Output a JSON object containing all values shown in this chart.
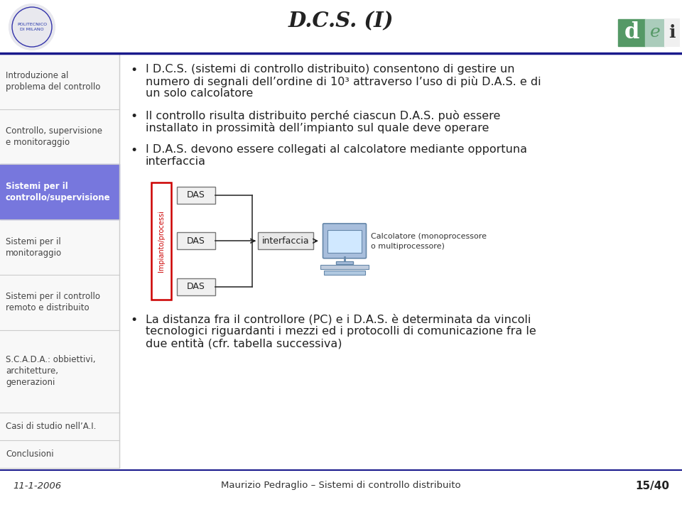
{
  "title": "D.C.S. (I)",
  "bg_color": "#ffffff",
  "header_line_color": "#1a1a8c",
  "sidebar_bg": "#f5f5f5",
  "sidebar_active_bg": "#7777dd",
  "sidebar_active_text": "#ffffff",
  "sidebar_text_color": "#444444",
  "sidebar_items": [
    "Introduzione al\nproblema del controllo",
    "Controllo, supervisione\ne monitoraggio",
    "Sistemi per il\ncontrollo/supervisione",
    "Sistemi per il\nmonitoraggio",
    "Sistemi per il controllo\nremoto e distribuito",
    "S.C.A.D.A.: obbiettivi,\narchitetture,\ngenerazioni",
    "Casi di studio nell’A.I.",
    "Conclusioni"
  ],
  "sidebar_active_index": 2,
  "bullet_points": [
    "I D.C.S. (sistemi di controllo distribuito) consentono di gestire un\nnumero di segnali dell’ordine di 10³ attraverso l’uso di più D.A.S. e di\nun solo calcolatore",
    "Il controllo risulta distribuito perché ciascun D.A.S. può essere\ninstallato in prossimità dell’impianto sul quale deve operare",
    "I D.A.S. devono essere collegati al calcolatore mediante opportuna\ninterfaccia",
    "La distanza fra il controllore (PC) e i D.A.S. è determinata da vincoli\ntecnologici riguardanti i mezzi ed i protocolli di comunicazione fra le\ndue entità (cfr. tabella successiva)"
  ],
  "footer_date": "11-1-2006",
  "footer_center": "Maurizio Pedraglio – Sistemi di controllo distribuito",
  "footer_right": "15/40",
  "text_color": "#222222",
  "diagram_impianto_border": "#cc0000",
  "diagram_impianto_text": "#cc0000",
  "sidebar_font_size": 8.5,
  "bullet_font_size": 11.5,
  "footer_font_size": 9.5
}
